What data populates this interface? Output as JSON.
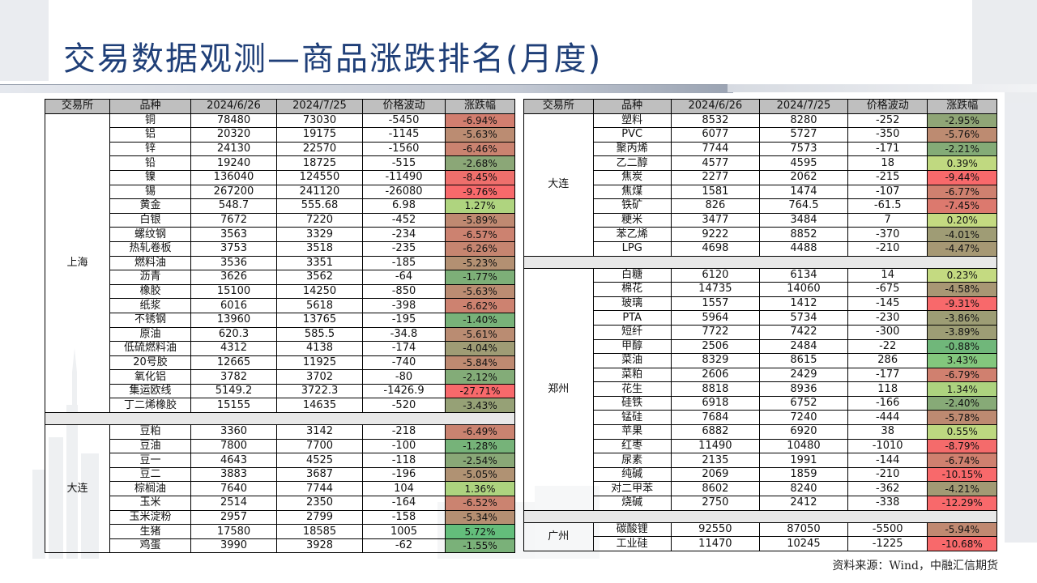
{
  "title": "交易数据观测—商品涨跌排名(月度)",
  "headers": [
    "交易所",
    "品种",
    "2024/6/26",
    "2024/7/25",
    "价格波动",
    "涨跌幅"
  ],
  "left_groups": [
    {
      "exchange": "上海",
      "rows": [
        [
          "铜",
          "78480",
          "73030",
          "-5450",
          "-6.94%"
        ],
        [
          "铝",
          "20320",
          "19175",
          "-1145",
          "-5.63%"
        ],
        [
          "锌",
          "24130",
          "22570",
          "-1560",
          "-6.46%"
        ],
        [
          "铅",
          "19240",
          "18725",
          "-515",
          "-2.68%"
        ],
        [
          "镍",
          "136040",
          "124550",
          "-11490",
          "-8.45%"
        ],
        [
          "锡",
          "267200",
          "241120",
          "-26080",
          "-9.76%"
        ],
        [
          "黄金",
          "548.7",
          "555.68",
          "6.98",
          "1.27%"
        ],
        [
          "白银",
          "7672",
          "7220",
          "-452",
          "-5.89%"
        ],
        [
          "螺纹钢",
          "3563",
          "3329",
          "-234",
          "-6.57%"
        ],
        [
          "热轧卷板",
          "3753",
          "3518",
          "-235",
          "-6.26%"
        ],
        [
          "燃料油",
          "3536",
          "3351",
          "-185",
          "-5.23%"
        ],
        [
          "沥青",
          "3626",
          "3562",
          "-64",
          "-1.77%"
        ],
        [
          "橡胶",
          "15100",
          "14250",
          "-850",
          "-5.63%"
        ],
        [
          "纸浆",
          "6016",
          "5618",
          "-398",
          "-6.62%"
        ],
        [
          "不锈钢",
          "13960",
          "13765",
          "-195",
          "-1.40%"
        ],
        [
          "原油",
          "620.3",
          "585.5",
          "-34.8",
          "-5.61%"
        ],
        [
          "低硫燃料油",
          "4312",
          "4138",
          "-174",
          "-4.04%"
        ],
        [
          "20号胶",
          "12665",
          "11925",
          "-740",
          "-5.84%"
        ],
        [
          "氧化铝",
          "3782",
          "3702",
          "-80",
          "-2.12%"
        ],
        [
          "集运欧线",
          "5149.2",
          "3722.3",
          "-1426.9",
          "-27.71%"
        ],
        [
          "丁二烯橡胶",
          "15155",
          "14635",
          "-520",
          "-3.43%"
        ]
      ]
    },
    {
      "exchange": "大连",
      "rows": [
        [
          "豆粕",
          "3360",
          "3142",
          "-218",
          "-6.49%"
        ],
        [
          "豆油",
          "7800",
          "7700",
          "-100",
          "-1.28%"
        ],
        [
          "豆一",
          "4643",
          "4525",
          "-118",
          "-2.54%"
        ],
        [
          "豆二",
          "3883",
          "3687",
          "-196",
          "-5.05%"
        ],
        [
          "棕榈油",
          "7640",
          "7744",
          "104",
          "1.36%"
        ],
        [
          "玉米",
          "2514",
          "2350",
          "-164",
          "-6.52%"
        ],
        [
          "玉米淀粉",
          "2957",
          "2799",
          "-158",
          "-5.34%"
        ],
        [
          "生猪",
          "17580",
          "18585",
          "1005",
          "5.72%"
        ],
        [
          "鸡蛋",
          "3990",
          "3928",
          "-62",
          "-1.55%"
        ]
      ]
    }
  ],
  "right_groups": [
    {
      "exchange": "大连",
      "rows": [
        [
          "塑料",
          "8532",
          "8280",
          "-252",
          "-2.95%"
        ],
        [
          "PVC",
          "6077",
          "5727",
          "-350",
          "-5.76%"
        ],
        [
          "聚丙烯",
          "7744",
          "7573",
          "-171",
          "-2.21%"
        ],
        [
          "乙二醇",
          "4577",
          "4595",
          "18",
          "0.39%"
        ],
        [
          "焦炭",
          "2277",
          "2062",
          "-215",
          "-9.44%"
        ],
        [
          "焦煤",
          "1581",
          "1474",
          "-107",
          "-6.77%"
        ],
        [
          "铁矿",
          "826",
          "764.5",
          "-61.5",
          "-7.45%"
        ],
        [
          "粳米",
          "3477",
          "3484",
          "7",
          "0.20%"
        ],
        [
          "苯乙烯",
          "9222",
          "8852",
          "-370",
          "-4.01%"
        ],
        [
          "LPG",
          "4698",
          "4488",
          "-210",
          "-4.47%"
        ]
      ]
    },
    {
      "exchange": "郑州",
      "rows": [
        [
          "白糖",
          "6120",
          "6134",
          "14",
          "0.23%"
        ],
        [
          "棉花",
          "14735",
          "14060",
          "-675",
          "-4.58%"
        ],
        [
          "玻璃",
          "1557",
          "1412",
          "-145",
          "-9.31%"
        ],
        [
          "PTA",
          "5964",
          "5734",
          "-230",
          "-3.86%"
        ],
        [
          "短纤",
          "7722",
          "7422",
          "-300",
          "-3.89%"
        ],
        [
          "甲醇",
          "2506",
          "2484",
          "-22",
          "-0.88%"
        ],
        [
          "菜油",
          "8329",
          "8615",
          "286",
          "3.43%"
        ],
        [
          "菜粕",
          "2606",
          "2429",
          "-177",
          "-6.79%"
        ],
        [
          "花生",
          "8818",
          "8936",
          "118",
          "1.34%"
        ],
        [
          "硅铁",
          "6918",
          "6752",
          "-166",
          "-2.40%"
        ],
        [
          "锰硅",
          "7684",
          "7240",
          "-444",
          "-5.78%"
        ],
        [
          "苹果",
          "6882",
          "6920",
          "38",
          "0.55%"
        ],
        [
          "红枣",
          "11490",
          "10480",
          "-1010",
          "-8.79%"
        ],
        [
          "尿素",
          "2135",
          "1991",
          "-144",
          "-6.74%"
        ],
        [
          "纯碱",
          "2069",
          "1859",
          "-210",
          "-10.15%"
        ],
        [
          "对二甲苯",
          "8602",
          "8240",
          "-362",
          "-4.21%"
        ],
        [
          "烧碱",
          "2750",
          "2412",
          "-338",
          "-12.29%"
        ]
      ]
    },
    {
      "exchange": "广州",
      "rows": [
        [
          "碳酸锂",
          "92550",
          "87050",
          "-5500",
          "-5.94%"
        ],
        [
          "工业硅",
          "11470",
          "10245",
          "-1225",
          "-10.68%"
        ]
      ]
    }
  ],
  "source": "资料来源：Wind，中融汇信期货",
  "colors": {
    "title": "#1f3f78",
    "header_bg": "#bfbfbf",
    "pos_strong": "#63be7b",
    "neg_strong": "#f8696b",
    "mid": "#ffeb84"
  }
}
